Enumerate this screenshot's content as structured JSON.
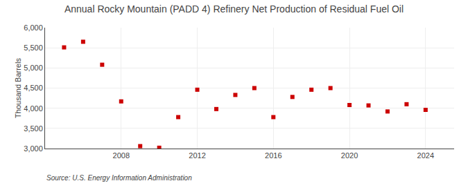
{
  "chart_data": {
    "type": "scatter",
    "title": "Annual Rocky Mountain (PADD 4) Refinery Net Production of Residual Fuel Oil",
    "ylabel": "Thousand Barrels",
    "source": "Source: U.S. Energy Information Administration",
    "x": [
      2005,
      2006,
      2007,
      2008,
      2009,
      2010,
      2011,
      2012,
      2013,
      2014,
      2015,
      2016,
      2017,
      2018,
      2019,
      2020,
      2021,
      2022,
      2023,
      2024
    ],
    "values": [
      5510,
      5650,
      5080,
      4170,
      3060,
      3020,
      3780,
      4460,
      3980,
      4330,
      4500,
      3780,
      4280,
      4460,
      4500,
      4080,
      4070,
      3920,
      4100,
      3960
    ],
    "color": "#cc0000",
    "marker": "square",
    "xlim": [
      2004.0,
      2025.5
    ],
    "xticks": [
      2008,
      2012,
      2016,
      2020,
      2024
    ],
    "ylim": [
      3000,
      6000
    ],
    "yticks": [
      {
        "value": 3000,
        "label": "3,000"
      },
      {
        "value": 3500,
        "label": "3,500"
      },
      {
        "value": 4000,
        "label": "4,000"
      },
      {
        "value": 4500,
        "label": "4,500"
      },
      {
        "value": 5000,
        "label": "5,000"
      },
      {
        "value": 5500,
        "label": "5,500"
      },
      {
        "value": 6000,
        "label": "6,000"
      }
    ],
    "grid": true
  }
}
